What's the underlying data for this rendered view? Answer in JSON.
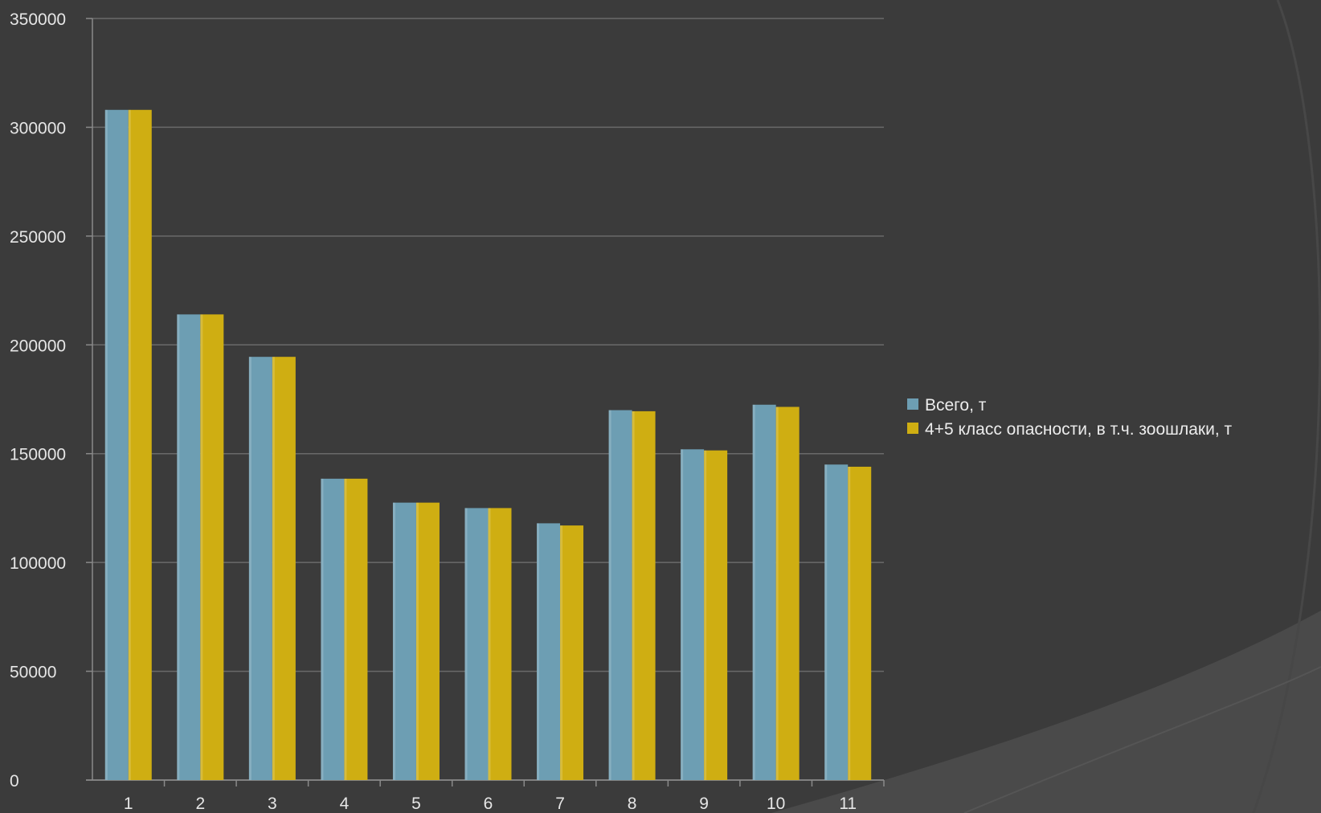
{
  "chart_data": {
    "type": "bar",
    "title": "",
    "xlabel": "",
    "ylabel": "",
    "categories": [
      "1",
      "2",
      "3",
      "4",
      "5",
      "6",
      "7",
      "8",
      "9",
      "10",
      "11"
    ],
    "series": [
      {
        "name": "Всего, т",
        "color": "#6d9eb3",
        "values": [
          308000,
          214000,
          194500,
          138500,
          127500,
          125000,
          118000,
          170000,
          152000,
          172500,
          145000
        ]
      },
      {
        "name": "4+5 класс опасности, в т.ч. зоошлаки, т",
        "color": "#cfae12",
        "values": [
          308000,
          214000,
          194500,
          138500,
          127500,
          125000,
          117000,
          169500,
          151500,
          171500,
          144000
        ]
      }
    ],
    "ylim": [
      0,
      350000
    ],
    "yticks": [
      0,
      50000,
      100000,
      150000,
      200000,
      250000,
      300000,
      350000
    ],
    "grid": true,
    "legend": "right",
    "background": "#3b3b3b",
    "accent_shape_color": "#4a4a4a"
  }
}
